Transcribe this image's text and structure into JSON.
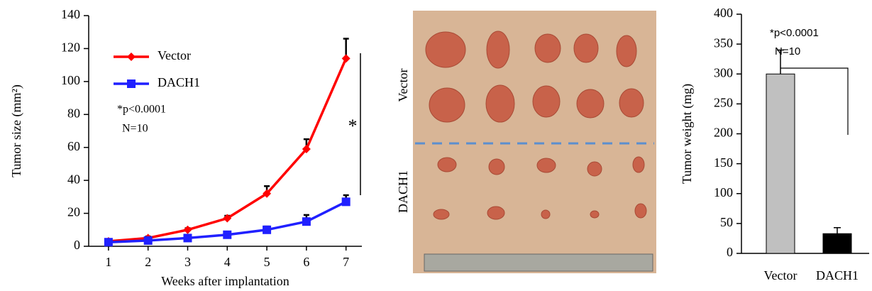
{
  "chart_data": [
    {
      "type": "line",
      "x": [
        1,
        2,
        3,
        4,
        5,
        6,
        7
      ],
      "xlim": [
        0.5,
        7.4
      ],
      "xticks": [
        1,
        2,
        3,
        4,
        5,
        6,
        7
      ],
      "ylim": [
        0,
        140
      ],
      "yticks": [
        0,
        20,
        40,
        60,
        80,
        100,
        120,
        140
      ],
      "xlabel": "Weeks after implantation",
      "ylabel": "Tumor size (mm²)",
      "series": [
        {
          "name": "Vector",
          "color": "#ff0000",
          "marker": "diamond",
          "values": [
            3,
            5,
            10,
            17,
            32,
            59,
            114
          ],
          "errors": [
            0.5,
            1,
            1,
            1.5,
            4.5,
            6,
            12
          ]
        },
        {
          "name": "DACH1",
          "color": "#2020ff",
          "marker": "square",
          "values": [
            2.5,
            3.5,
            5,
            7,
            10,
            15,
            27
          ],
          "errors": [
            1,
            1,
            1,
            1,
            2,
            4,
            4
          ]
        }
      ],
      "annotations": [
        "*p<0.0001",
        "N=10",
        "*"
      ]
    },
    {
      "type": "bar",
      "categories": [
        "Vector",
        "DACH1"
      ],
      "values": [
        300,
        33
      ],
      "errors": [
        40,
        10
      ],
      "colors": [
        "#c0c0c0",
        "#000000"
      ],
      "ylim": [
        0,
        400
      ],
      "yticks": [
        0,
        50,
        100,
        150,
        200,
        250,
        300,
        350,
        400
      ],
      "ylabel": "Tumor weight (mg)",
      "annotations": [
        "*p<0.0001",
        "N=10"
      ]
    }
  ],
  "photo": {
    "labels": [
      "Vector",
      "DACH1"
    ]
  }
}
